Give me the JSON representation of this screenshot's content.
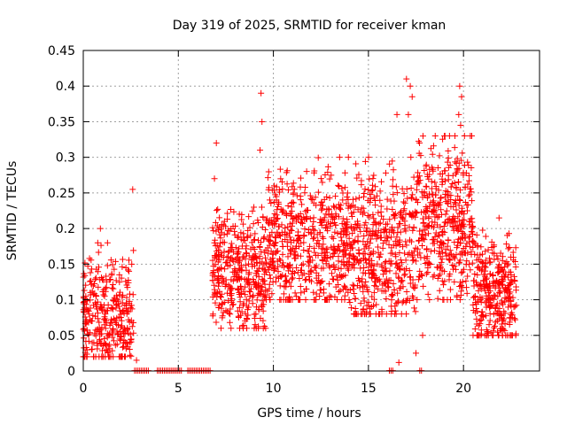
{
  "chart_data": {
    "type": "scatter",
    "title": "Day 319 of 2025, SRMTID for receiver kman",
    "xlabel": "GPS time / hours",
    "ylabel": "SRMTID / TECUs",
    "xlim": [
      0,
      24
    ],
    "ylim": [
      0,
      0.45
    ],
    "xticks": [
      0,
      5,
      10,
      15,
      20
    ],
    "xtick_labels": [
      "0",
      "5",
      "10",
      "15",
      "20"
    ],
    "yticks": [
      0,
      0.05,
      0.1,
      0.15,
      0.2,
      0.25,
      0.3,
      0.35,
      0.4,
      0.45
    ],
    "ytick_labels": [
      "0",
      "0.05",
      "0.1",
      "0.15",
      "0.2",
      "0.25",
      "0.3",
      "0.35",
      "0.4",
      "0.45"
    ],
    "grid": true,
    "marker": "plus",
    "color": "#ff0000",
    "series_name": "SRMTID",
    "segments": [
      {
        "x0": 0.0,
        "x1": 2.65,
        "n": 330,
        "lo": 0.02,
        "hi": 0.18,
        "center": 0.075
      },
      {
        "x0": 6.8,
        "x1": 9.6,
        "n": 380,
        "lo": 0.06,
        "hi": 0.23,
        "center": 0.135
      },
      {
        "x0": 9.6,
        "x1": 14.0,
        "n": 560,
        "lo": 0.1,
        "hi": 0.3,
        "center": 0.18
      },
      {
        "x0": 14.0,
        "x1": 17.5,
        "n": 450,
        "lo": 0.08,
        "hi": 0.3,
        "center": 0.17
      },
      {
        "x0": 17.5,
        "x1": 20.5,
        "n": 420,
        "lo": 0.1,
        "hi": 0.33,
        "center": 0.21
      },
      {
        "x0": 20.5,
        "x1": 22.8,
        "n": 320,
        "lo": 0.05,
        "hi": 0.22,
        "center": 0.11
      }
    ],
    "outliers": [
      {
        "x": 2.6,
        "y": 0.255
      },
      {
        "x": 2.55,
        "y": 0.15
      },
      {
        "x": 1.9,
        "y": 0.135
      },
      {
        "x": 0.9,
        "y": 0.2
      },
      {
        "x": 7.0,
        "y": 0.32
      },
      {
        "x": 6.9,
        "y": 0.27
      },
      {
        "x": 9.35,
        "y": 0.39
      },
      {
        "x": 9.4,
        "y": 0.35
      },
      {
        "x": 9.3,
        "y": 0.31
      },
      {
        "x": 17.0,
        "y": 0.41
      },
      {
        "x": 17.2,
        "y": 0.4
      },
      {
        "x": 17.3,
        "y": 0.385
      },
      {
        "x": 17.1,
        "y": 0.36
      },
      {
        "x": 19.8,
        "y": 0.4
      },
      {
        "x": 19.9,
        "y": 0.385
      },
      {
        "x": 19.75,
        "y": 0.36
      },
      {
        "x": 19.85,
        "y": 0.345
      },
      {
        "x": 16.6,
        "y": 0.012
      },
      {
        "x": 17.85,
        "y": 0.05
      },
      {
        "x": 17.5,
        "y": 0.025
      },
      {
        "x": 2.8,
        "y": 0.015
      },
      {
        "x": 16.5,
        "y": 0.36
      }
    ],
    "zero_ranges": [
      [
        2.7,
        3.5
      ],
      [
        3.9,
        5.2
      ],
      [
        5.5,
        6.7
      ],
      [
        16.1,
        16.35
      ],
      [
        17.7,
        17.8
      ]
    ]
  }
}
